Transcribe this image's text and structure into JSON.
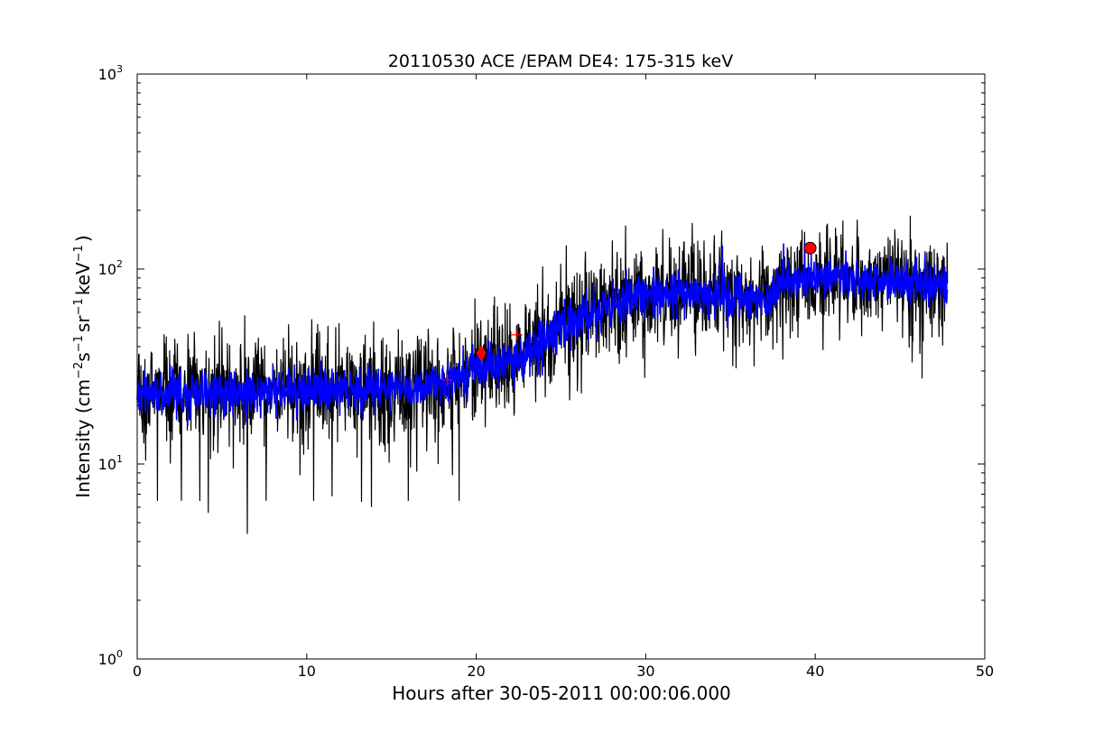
{
  "chart_data": {
    "type": "line",
    "title": "20110530 ACE /EPAM DE4: 175-315 keV",
    "xlabel": "Hours after 30-05-2011 00:00:06.000",
    "ylabel": {
      "prefix": "Intensity (cm",
      "exp1": "−2",
      "s": "s",
      "exp2": "−1",
      "sr": "sr",
      "exp3": "−1",
      "kev": "keV",
      "exp4": "−1",
      "suffix": ")"
    },
    "xlim": [
      0,
      50
    ],
    "ylim": [
      1,
      1000
    ],
    "yscale": "log",
    "x_ticks": [
      {
        "value": 0,
        "label": "0"
      },
      {
        "value": 10,
        "label": "10"
      },
      {
        "value": 20,
        "label": "20"
      },
      {
        "value": 30,
        "label": "30"
      },
      {
        "value": 40,
        "label": "40"
      },
      {
        "value": 50,
        "label": "50"
      }
    ],
    "y_ticks": [
      {
        "value": 1,
        "base": "10",
        "exp": "0"
      },
      {
        "value": 10,
        "base": "10",
        "exp": "1"
      },
      {
        "value": 100,
        "base": "10",
        "exp": "2"
      },
      {
        "value": 1000,
        "base": "10",
        "exp": "3"
      }
    ],
    "grid": false,
    "legend": "none",
    "series": [
      {
        "style": "raw",
        "color": "#000000",
        "trend": [
          [
            0,
            23
          ],
          [
            5,
            23
          ],
          [
            10,
            24
          ],
          [
            15,
            24
          ],
          [
            18,
            26
          ],
          [
            20,
            30
          ],
          [
            22,
            34
          ],
          [
            24,
            42
          ],
          [
            25,
            52
          ],
          [
            27,
            60
          ],
          [
            29,
            72
          ],
          [
            31,
            75
          ],
          [
            34,
            73
          ],
          [
            37.5,
            72
          ],
          [
            38,
            85
          ],
          [
            40,
            90
          ],
          [
            44,
            88
          ],
          [
            47.8,
            80
          ]
        ],
        "spread": 0.22,
        "dips": [
          [
            1.2,
            6.5
          ],
          [
            2.6,
            6.5
          ],
          [
            3.7,
            6.5
          ],
          [
            6.5,
            4.4
          ],
          [
            7.6,
            6.5
          ],
          [
            9.6,
            8.8
          ],
          [
            10.4,
            6.5
          ],
          [
            16,
            6.5
          ],
          [
            18.6,
            8.8
          ],
          [
            19,
            6.5
          ],
          [
            34.6,
            38
          ]
        ],
        "spikes": [
          [
            9.4,
            42
          ],
          [
            10.3,
            55
          ],
          [
            25,
            62
          ],
          [
            25.2,
            70
          ],
          [
            26.8,
            98
          ],
          [
            44.3,
            145
          ],
          [
            45.1,
            140
          ]
        ],
        "x_end": 47.8
      },
      {
        "style": "smoothed",
        "color": "#0000ff",
        "trend": [
          [
            0,
            23
          ],
          [
            5,
            23
          ],
          [
            10,
            24
          ],
          [
            15,
            24
          ],
          [
            18,
            26
          ],
          [
            20,
            30
          ],
          [
            22,
            34
          ],
          [
            24,
            42
          ],
          [
            25,
            52
          ],
          [
            27,
            60
          ],
          [
            29,
            72
          ],
          [
            31,
            75
          ],
          [
            34,
            73
          ],
          [
            37.5,
            72
          ],
          [
            38,
            85
          ],
          [
            40,
            90
          ],
          [
            44,
            88
          ],
          [
            47.8,
            80
          ]
        ],
        "spread": 0.09,
        "x_end": 47.8
      }
    ],
    "markers": [
      {
        "type": "plus",
        "x": 18.3,
        "y": 27,
        "color": "#ff0000"
      },
      {
        "type": "diamond",
        "x": 20.3,
        "y": 37,
        "color": "#ff0000"
      },
      {
        "type": "plus",
        "x": 22.4,
        "y": 46,
        "color": "#ff0000"
      },
      {
        "type": "circle",
        "x": 39.7,
        "y": 128,
        "color": "#ff0000"
      }
    ]
  }
}
